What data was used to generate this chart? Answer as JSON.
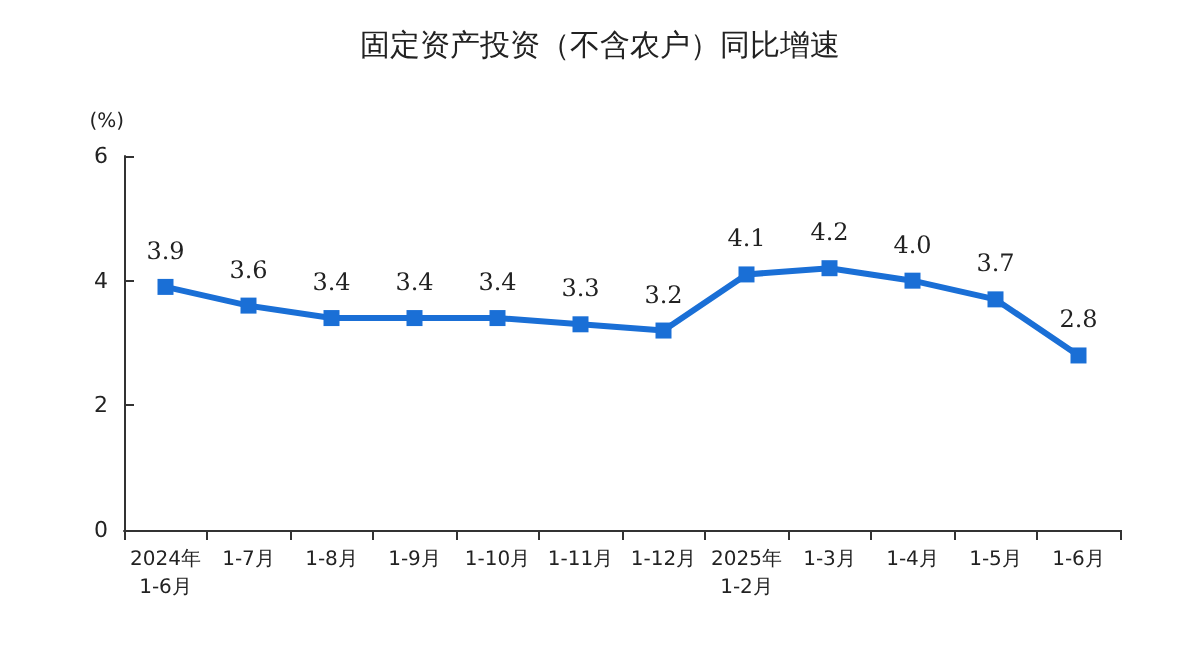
{
  "chart_data": {
    "type": "line",
    "title": "固定资产投资（不含农户）同比增速",
    "ylabel": "(%)",
    "categories": [
      "2024年\n1-6月",
      "1-7月",
      "1-8月",
      "1-9月",
      "1-10月",
      "1-11月",
      "1-12月",
      "2025年\n1-2月",
      "1-3月",
      "1-4月",
      "1-5月",
      "1-6月"
    ],
    "series": [
      {
        "color": "#1a6fd6",
        "values": [
          3.9,
          3.6,
          3.4,
          3.4,
          3.4,
          3.3,
          3.2,
          4.1,
          4.2,
          4.0,
          3.7,
          2.8
        ],
        "value_labels": [
          "3.9",
          "3.6",
          "3.4",
          "3.4",
          "3.4",
          "3.3",
          "3.2",
          "4.1",
          "4.2",
          "4.0",
          "3.7",
          "2.8"
        ]
      }
    ],
    "ylim": [
      0,
      6
    ],
    "yticks": [
      0,
      2,
      4,
      6
    ],
    "grid": false,
    "marker": "square",
    "line_style": "solid"
  }
}
